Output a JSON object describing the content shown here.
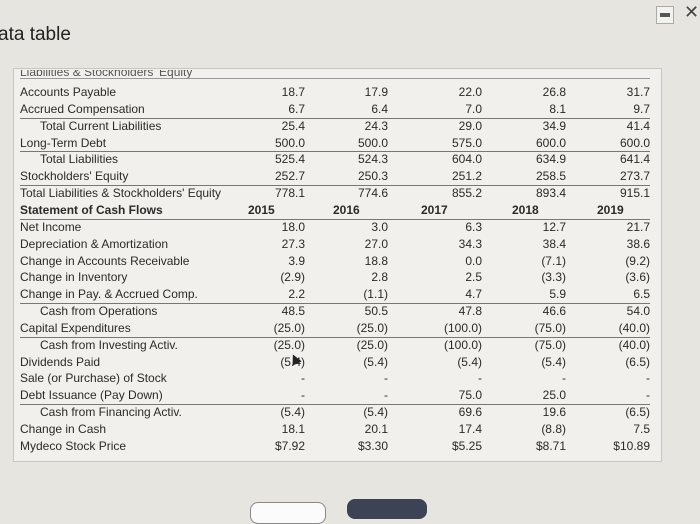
{
  "window": {
    "title": "ata table",
    "minimize_icon": "minimize-icon",
    "close_icon": "close-icon",
    "close_glyph": "✕"
  },
  "table": {
    "cutoff_header": "Liabilities & Stockholders' Equity",
    "years": [
      "2015",
      "2016",
      "2017",
      "2018",
      "2019"
    ],
    "rows": [
      {
        "label": "Accounts Payable",
        "values": [
          "18.7",
          "17.9",
          "22.0",
          "26.8",
          "31.7"
        ]
      },
      {
        "label": "Accrued Compensation",
        "values": [
          "6.7",
          "6.4",
          "7.0",
          "8.1",
          "9.7"
        ]
      },
      {
        "label": "Total Current Liabilities",
        "indent": true,
        "line": true,
        "values": [
          "25.4",
          "24.3",
          "29.0",
          "34.9",
          "41.4"
        ]
      },
      {
        "label": "Long-Term Debt",
        "values": [
          "500.0",
          "500.0",
          "575.0",
          "600.0",
          "600.0"
        ]
      },
      {
        "label": "Total Liabilities",
        "indent": true,
        "line": true,
        "values": [
          "525.4",
          "524.3",
          "604.0",
          "634.9",
          "641.4"
        ]
      },
      {
        "label": "Stockholders' Equity",
        "values": [
          "252.7",
          "250.3",
          "251.2",
          "258.5",
          "273.7"
        ]
      },
      {
        "label": "Total Liabilities & Stockholders' Equity",
        "line": true,
        "values": [
          "778.1",
          "774.6",
          "855.2",
          "893.4",
          "915.1"
        ]
      },
      {
        "label": "Statement of Cash Flows",
        "bold": true,
        "header": true,
        "values": []
      },
      {
        "label": "Net Income",
        "line": true,
        "values": [
          "18.0",
          "3.0",
          "6.3",
          "12.7",
          "21.7"
        ]
      },
      {
        "label": "Depreciation & Amortization",
        "values": [
          "27.3",
          "27.0",
          "34.3",
          "38.4",
          "38.6"
        ]
      },
      {
        "label": "Change in Accounts Receivable",
        "values": [
          "3.9",
          "18.8",
          "0.0",
          "(7.1)",
          "(9.2)"
        ]
      },
      {
        "label": "Change in Inventory",
        "values": [
          "(2.9)",
          "2.8",
          "2.5",
          "(3.3)",
          "(3.6)"
        ]
      },
      {
        "label": "Change in Pay. & Accrued Comp.",
        "values": [
          "2.2",
          "(1.1)",
          "4.7",
          "5.9",
          "6.5"
        ]
      },
      {
        "label": "Cash from Operations",
        "indent": true,
        "line": true,
        "values": [
          "48.5",
          "50.5",
          "47.8",
          "46.6",
          "54.0"
        ]
      },
      {
        "label": "Capital Expenditures",
        "values": [
          "(25.0)",
          "(25.0)",
          "(100.0)",
          "(75.0)",
          "(40.0)"
        ]
      },
      {
        "label": "Cash from Investing Activ.",
        "indent": true,
        "line": true,
        "values": [
          "(25.0)",
          "(25.0)",
          "(100.0)",
          "(75.0)",
          "(40.0)"
        ]
      },
      {
        "label": "Dividends Paid",
        "values": [
          "(5.4)",
          "(5.4)",
          "(5.4)",
          "(5.4)",
          "(6.5)"
        ]
      },
      {
        "label": "Sale (or Purchase) of Stock",
        "values": [
          "-",
          "-",
          "-",
          "-",
          "-"
        ]
      },
      {
        "label": "Debt Issuance (Pay Down)",
        "values": [
          "-",
          "-",
          "75.0",
          "25.0",
          "-"
        ]
      },
      {
        "label": "Cash from Financing Activ.",
        "indent": true,
        "line": true,
        "values": [
          "(5.4)",
          "(5.4)",
          "69.6",
          "19.6",
          "(6.5)"
        ]
      },
      {
        "label": "Change in Cash",
        "values": [
          "18.1",
          "20.1",
          "17.4",
          "(8.8)",
          "7.5"
        ]
      },
      {
        "label": "Mydeco Stock Price",
        "values": [
          "$7.92",
          "$3.30",
          "$5.25",
          "$8.71",
          "$10.89"
        ]
      }
    ]
  }
}
